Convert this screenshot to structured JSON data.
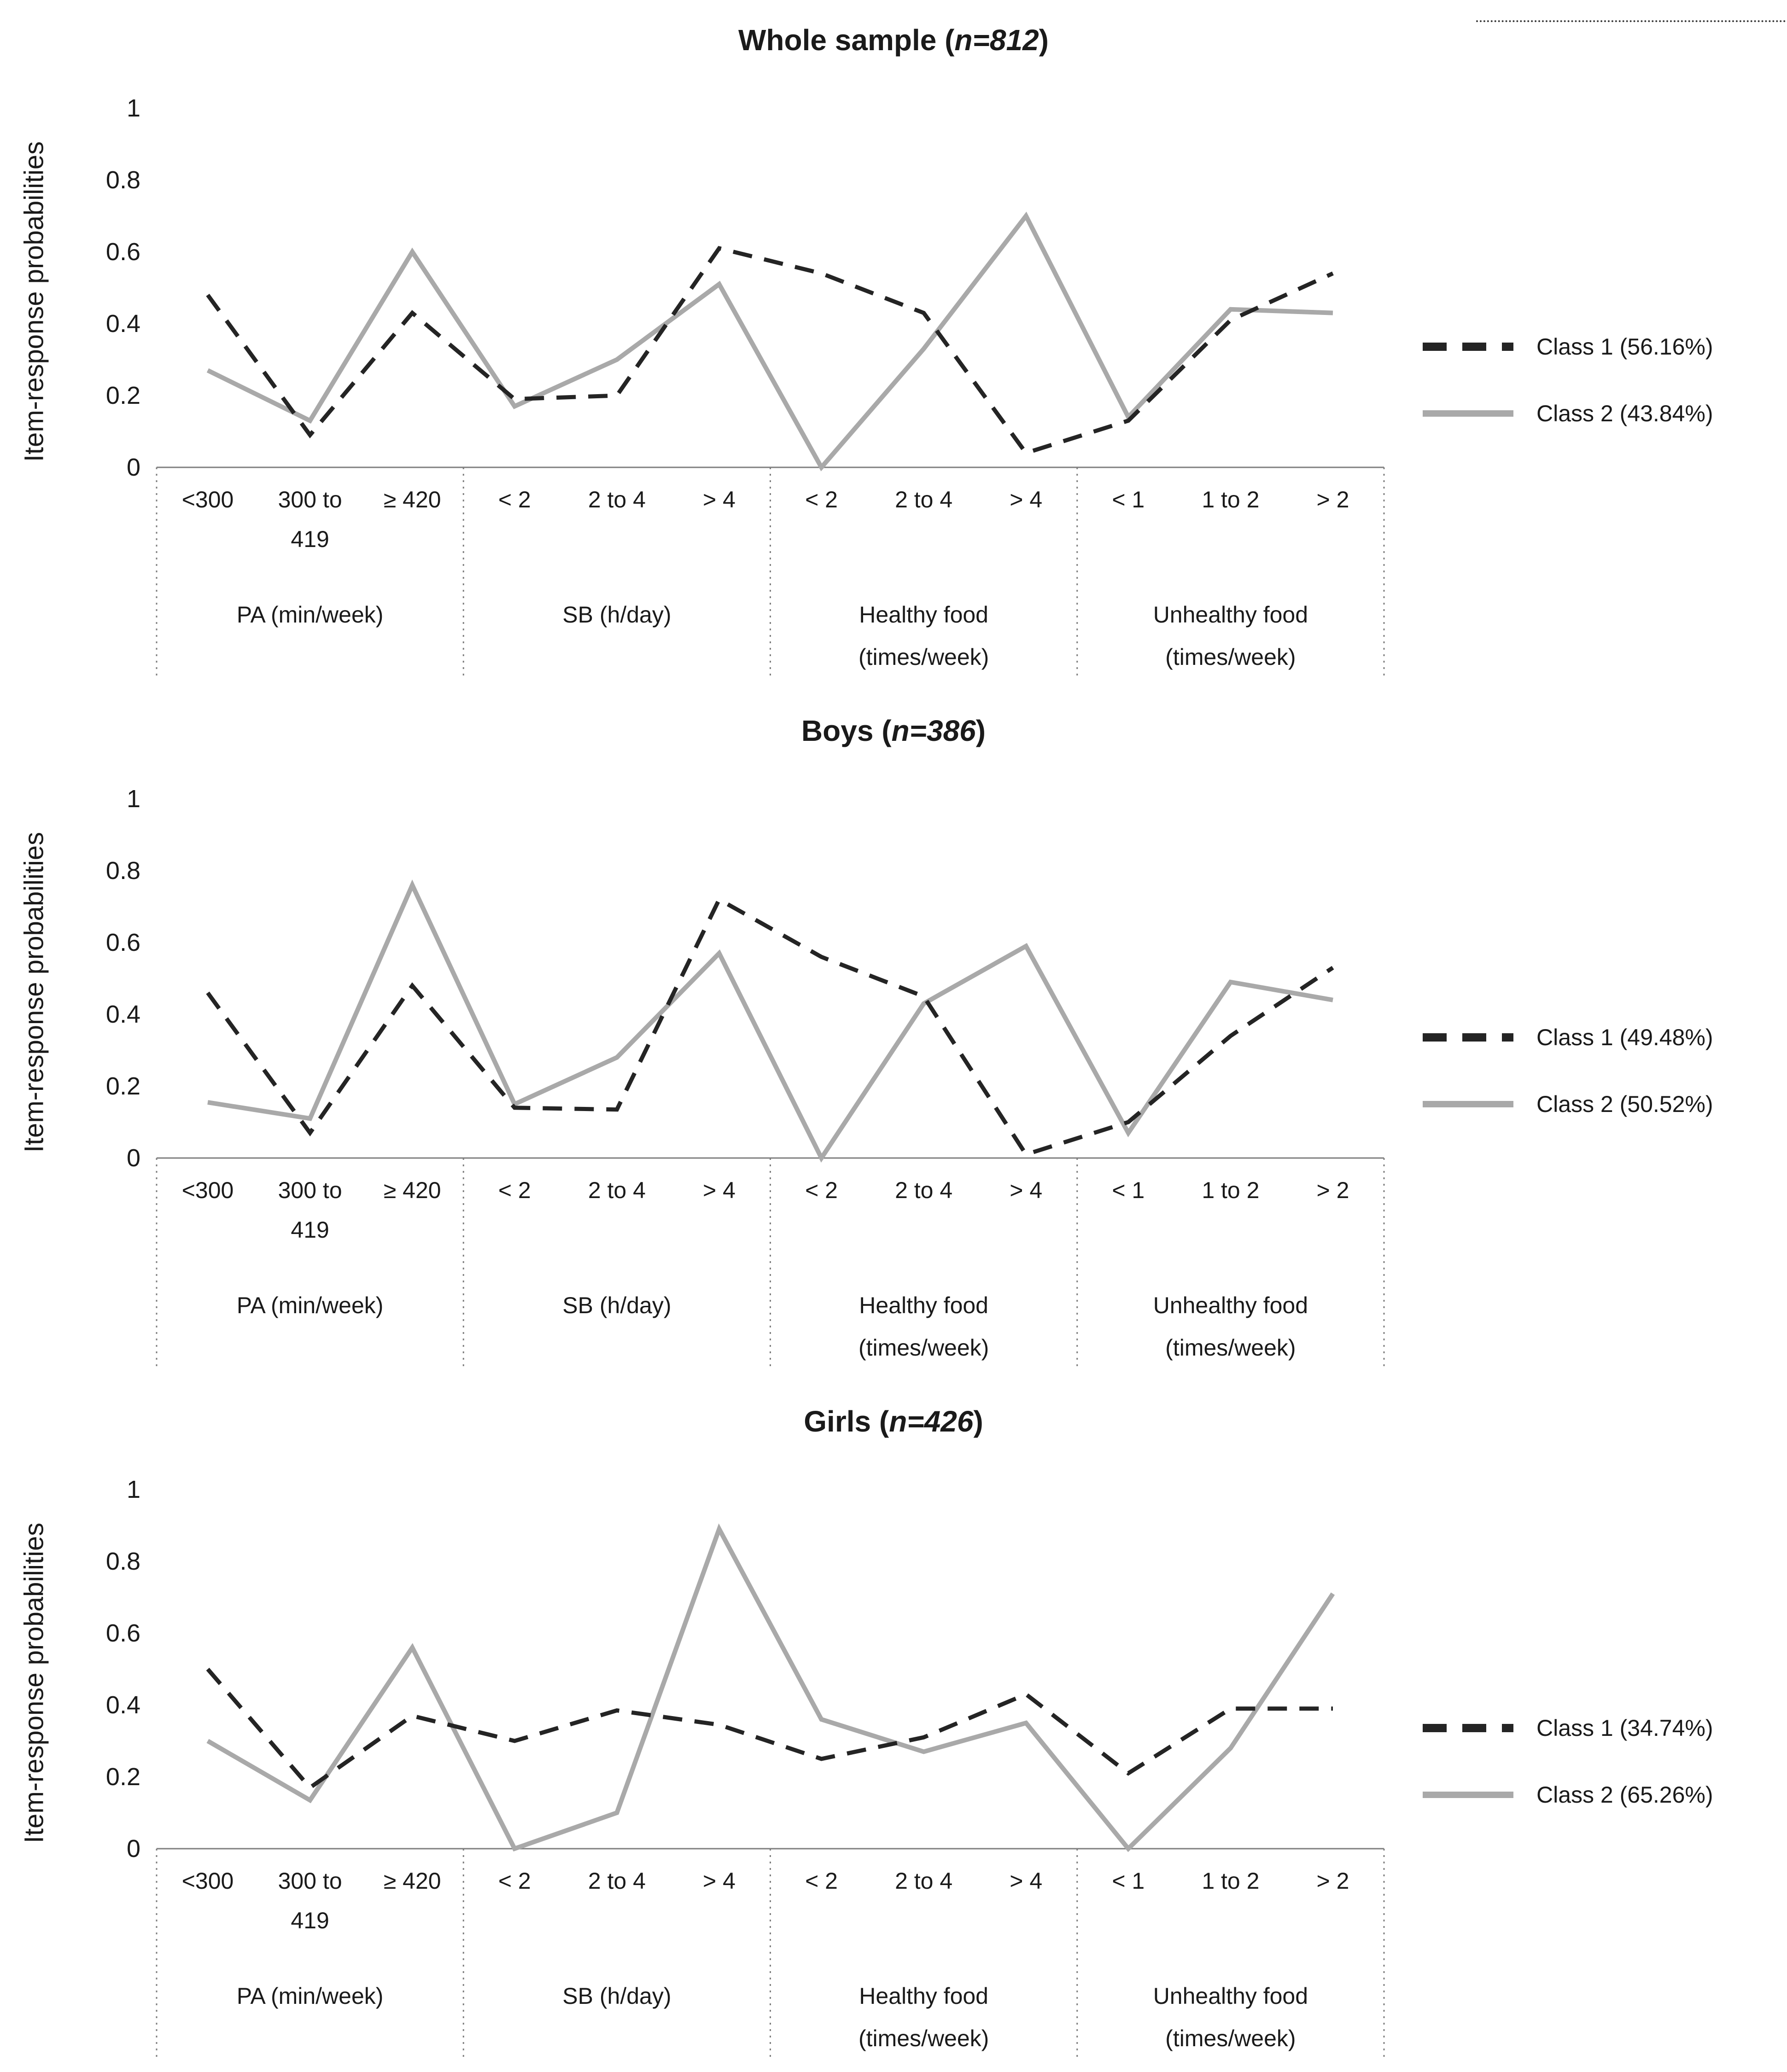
{
  "colors": {
    "class1_line": "#242424",
    "class2_line": "#a9a9a9",
    "axis": "#7f7f7f",
    "text": "#1a1a1a",
    "background": "#ffffff"
  },
  "figure": {
    "y_axis_title": "Item-response probabilities",
    "y_ticks": [
      "1",
      "0.8",
      "0.6",
      "0.4",
      "0.2",
      "0"
    ],
    "x_groups": [
      {
        "label": "PA (min/week)",
        "categories": [
          "<300",
          "300 to\n419",
          "≥ 420"
        ]
      },
      {
        "label": "SB (h/day)",
        "categories": [
          "< 2",
          "2 to 4",
          "> 4"
        ]
      },
      {
        "label": "Healthy food\n(times/week)",
        "categories": [
          "< 2",
          "2 to 4",
          "> 4"
        ]
      },
      {
        "label": "Unhealthy food\n(times/week)",
        "categories": [
          "< 1",
          "1 to 2",
          "> 2"
        ]
      }
    ]
  },
  "charts": [
    {
      "title": {
        "prefix": "Whole sample (",
        "n": "n=812",
        "suffix": ")"
      },
      "legend": [
        {
          "label": "Class 1 (56.16%)"
        },
        {
          "label": "Class 2 (43.84%)"
        }
      ],
      "chart_data": {
        "type": "line",
        "title": "Whole sample (n=812)",
        "ylabel": "Item-response probabilities",
        "ylim": [
          0,
          1
        ],
        "y_tick_step": 0.2,
        "grid": false,
        "legend_position": "right",
        "categories": [
          "<300",
          "300 to 419",
          "≥ 420",
          "< 2",
          "2 to 4",
          "> 4",
          "< 2",
          "2 to 4",
          "> 4",
          "< 1",
          "1 to 2",
          "> 2"
        ],
        "category_groups": [
          "PA (min/week)",
          "SB (h/day)",
          "Healthy food (times/week)",
          "Unhealthy food (times/week)"
        ],
        "series": [
          {
            "name": "Class 1 (56.16%)",
            "line_style": "dashed",
            "color": "#242424",
            "values": [
              0.48,
              0.09,
              0.43,
              0.19,
              0.2,
              0.61,
              0.54,
              0.43,
              0.04,
              0.13,
              0.41,
              0.54
            ]
          },
          {
            "name": "Class 2 (43.84%)",
            "line_style": "solid",
            "color": "#a9a9a9",
            "values": [
              0.27,
              0.13,
              0.6,
              0.17,
              0.3,
              0.51,
              0.0,
              0.33,
              0.7,
              0.14,
              0.44,
              0.43
            ]
          }
        ]
      }
    },
    {
      "title": {
        "prefix": "Boys (",
        "n": "n=386",
        "suffix": ")"
      },
      "legend": [
        {
          "label": "Class 1 (49.48%)"
        },
        {
          "label": "Class 2 (50.52%)"
        }
      ],
      "chart_data": {
        "type": "line",
        "title": "Boys (n=386)",
        "ylabel": "Item-response probabilities",
        "ylim": [
          0,
          1
        ],
        "y_tick_step": 0.2,
        "grid": false,
        "legend_position": "right",
        "categories": [
          "<300",
          "300 to 419",
          "≥ 420",
          "< 2",
          "2 to 4",
          "> 4",
          "< 2",
          "2 to 4",
          "> 4",
          "< 1",
          "1 to 2",
          "> 2"
        ],
        "category_groups": [
          "PA (min/week)",
          "SB (h/day)",
          "Healthy food (times/week)",
          "Unhealthy food (times/week)"
        ],
        "series": [
          {
            "name": "Class 1 (49.48%)",
            "line_style": "dashed",
            "color": "#242424",
            "values": [
              0.46,
              0.07,
              0.48,
              0.14,
              0.135,
              0.72,
              0.56,
              0.45,
              0.01,
              0.1,
              0.34,
              0.53
            ]
          },
          {
            "name": "Class 2 (50.52%)",
            "line_style": "solid",
            "color": "#a9a9a9",
            "values": [
              0.155,
              0.11,
              0.76,
              0.15,
              0.28,
              0.57,
              0.0,
              0.43,
              0.59,
              0.07,
              0.49,
              0.44
            ]
          }
        ]
      }
    },
    {
      "title": {
        "prefix": "Girls (",
        "n": "n=426",
        "suffix": ")"
      },
      "legend": [
        {
          "label": "Class 1 (34.74%)"
        },
        {
          "label": "Class 2 (65.26%)"
        }
      ],
      "chart_data": {
        "type": "line",
        "title": "Girls (n=426)",
        "ylabel": "Item-response probabilities",
        "ylim": [
          0,
          1
        ],
        "y_tick_step": 0.2,
        "grid": false,
        "legend_position": "right",
        "categories": [
          "<300",
          "300 to 419",
          "≥ 420",
          "< 2",
          "2 to 4",
          "> 4",
          "< 2",
          "2 to 4",
          "> 4",
          "< 1",
          "1 to 2",
          "> 2"
        ],
        "category_groups": [
          "PA (min/week)",
          "SB (h/day)",
          "Healthy food (times/week)",
          "Unhealthy food (times/week)"
        ],
        "series": [
          {
            "name": "Class 1 (34.74%)",
            "line_style": "dashed",
            "color": "#242424",
            "values": [
              0.5,
              0.17,
              0.37,
              0.3,
              0.385,
              0.345,
              0.25,
              0.31,
              0.43,
              0.21,
              0.39,
              0.39
            ]
          },
          {
            "name": "Class 2 (65.26%)",
            "line_style": "solid",
            "color": "#a9a9a9",
            "values": [
              0.3,
              0.135,
              0.56,
              0.0,
              0.1,
              0.89,
              0.36,
              0.27,
              0.35,
              0.0,
              0.28,
              0.71
            ]
          }
        ]
      }
    }
  ]
}
